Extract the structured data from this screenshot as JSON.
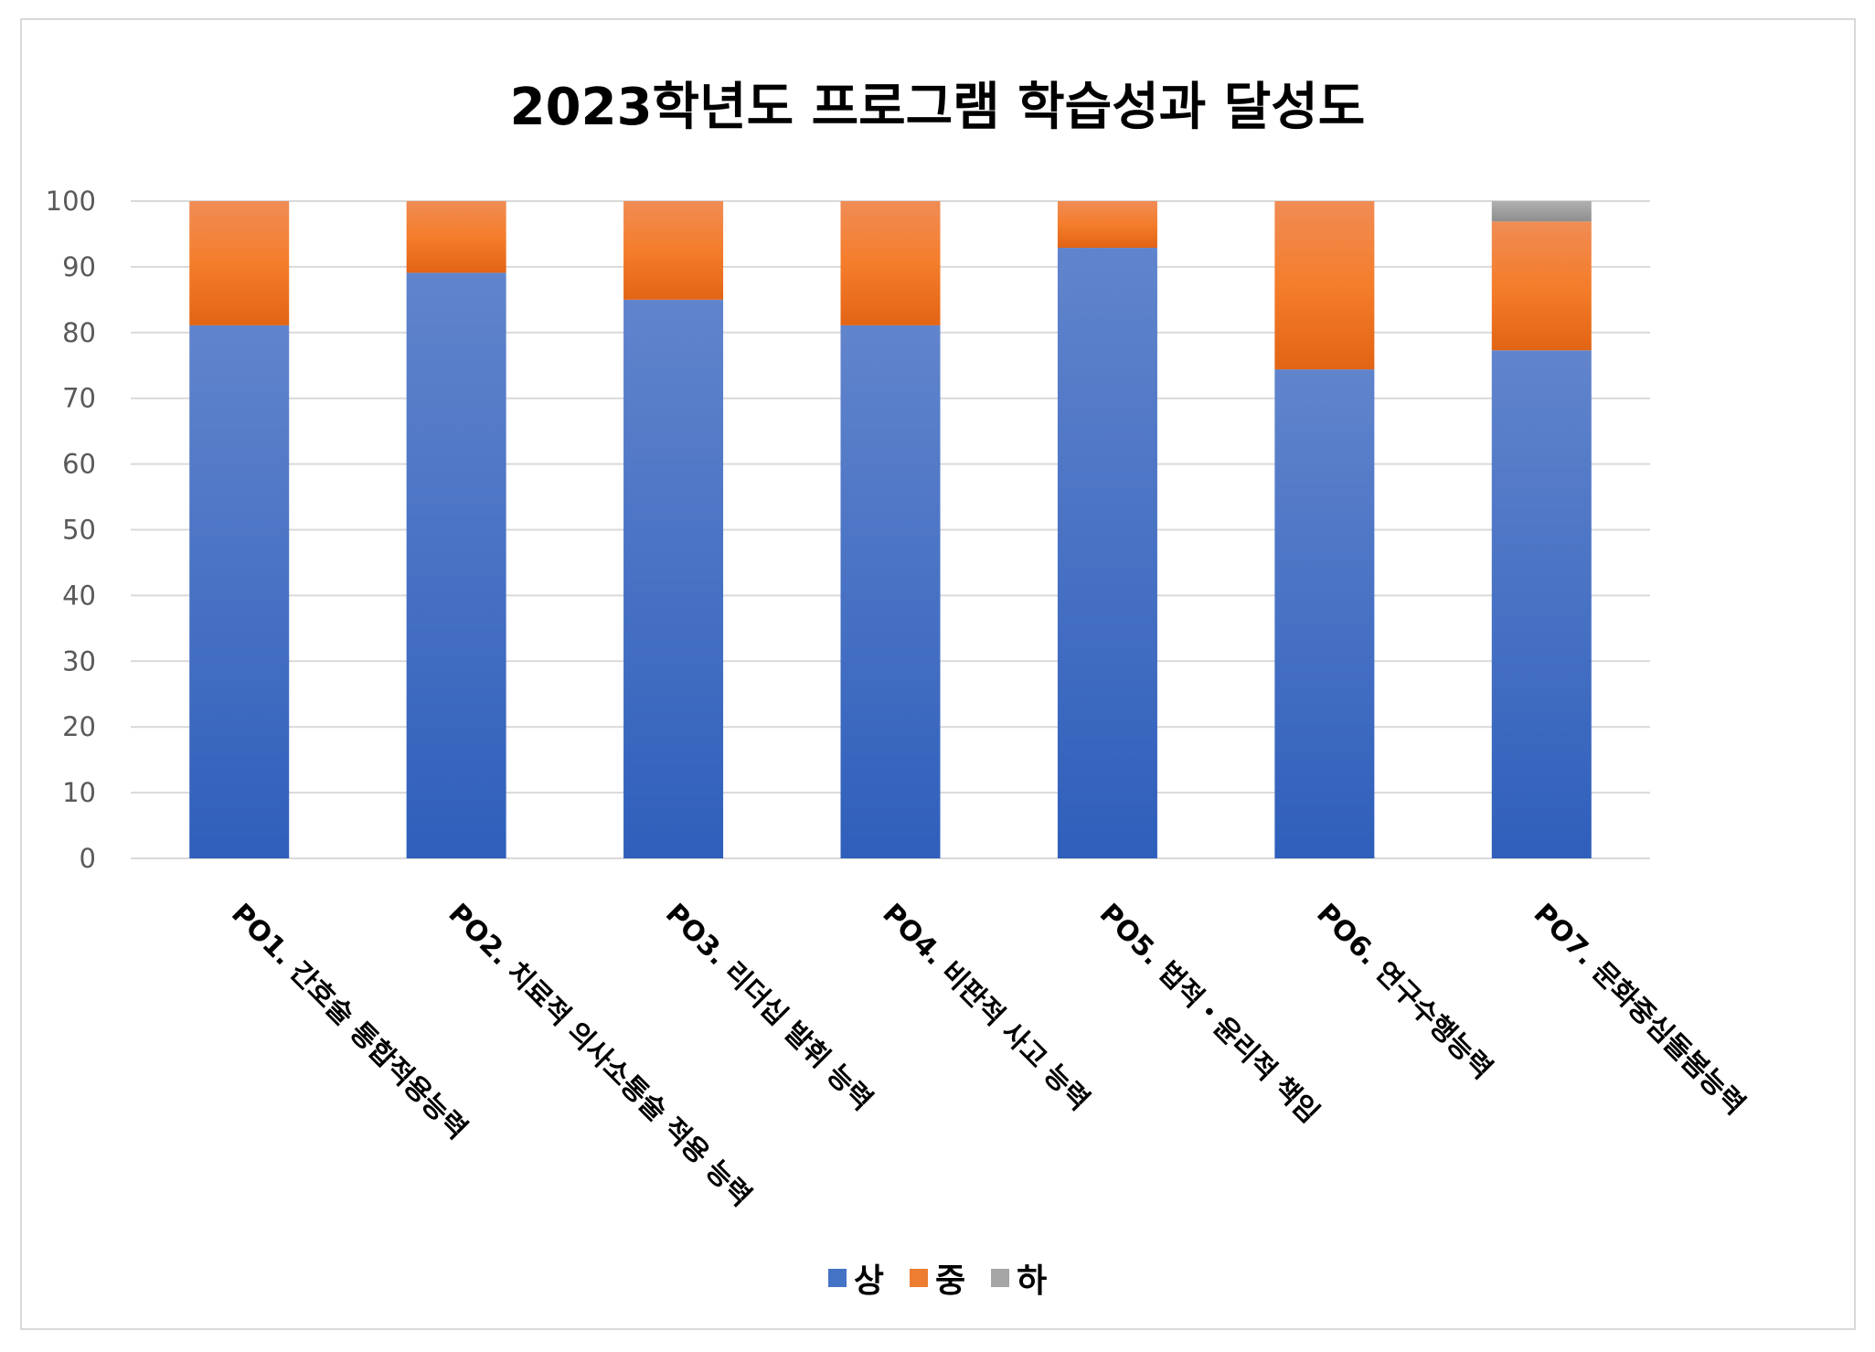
{
  "chart_data": {
    "type": "bar",
    "stacked": true,
    "title": "2023학년도 프로그램 학습성과 달성도",
    "xlabel": "",
    "ylabel": "",
    "ylim": [
      0,
      100
    ],
    "yticks": [
      0,
      10,
      20,
      30,
      40,
      50,
      60,
      70,
      80,
      90,
      100
    ],
    "grid": true,
    "legend_position": "bottom",
    "categories": [
      "PO1. 간호술 통합적용능력",
      "PO2. 치료적 의사소통술 적용 능력",
      "PO3. 리더십 발휘 능력",
      "PO4. 비판적 사고 능력",
      "PO5. 법적・윤리적 책임",
      "PO6. 연구수행능력",
      "PO7. 문화중심돌봄능력"
    ],
    "series": [
      {
        "name": "상",
        "color": "#4472c4",
        "values": [
          81.1,
          89.1,
          85.0,
          81.1,
          92.9,
          74.4,
          77.3
        ]
      },
      {
        "name": "중",
        "color": "#ed7d31",
        "values": [
          18.9,
          10.9,
          15.0,
          18.9,
          7.1,
          25.6,
          19.6
        ]
      },
      {
        "name": "하",
        "color": "#a5a5a5",
        "values": [
          0,
          0,
          0,
          0,
          0,
          0,
          3.1
        ]
      }
    ]
  }
}
